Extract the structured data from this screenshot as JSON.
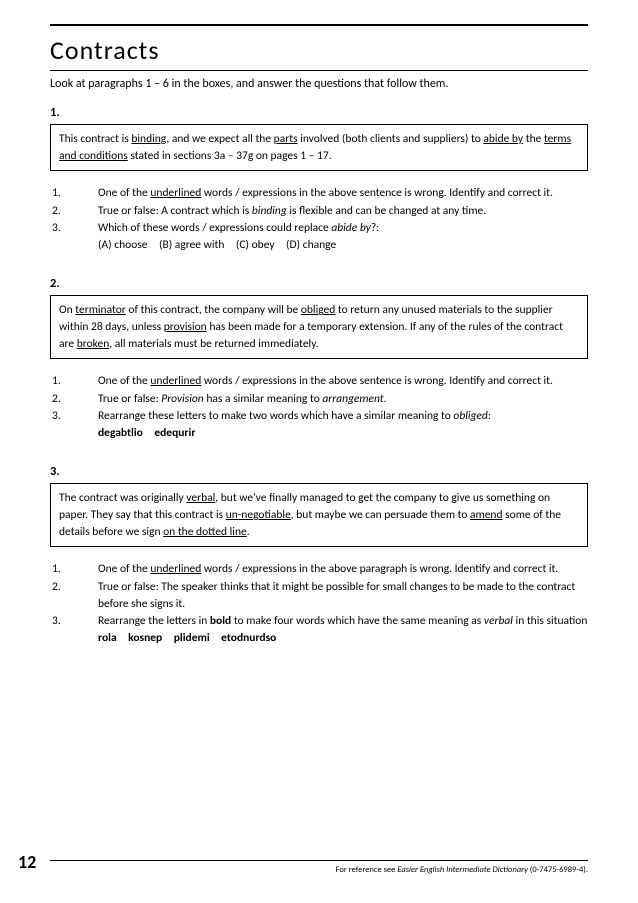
{
  "title": "Contracts",
  "intro": "Look at paragraphs 1 – 6 in the boxes, and answer the questions that follow them.",
  "sections": [
    {
      "num": "1.",
      "box_html": "This contract is <span class='u'>binding</span>, and we expect all the <span class='u'>parts</span> involved (both clients and suppliers) to <span class='u'>abide by</span> the <span class='u'>terms and conditions</span> stated in sections 3a – 37g on pages 1 – 17.",
      "questions": [
        {
          "n": "1.",
          "t": "One of the <span class='u'>underlined</span> words / expressions in the above sentence is wrong. Identify and correct it."
        },
        {
          "n": "2.",
          "t": "True or false: A contract which is <span class='i'>binding</span> is flexible and can be changed at any time."
        },
        {
          "n": "3.",
          "t": "Which of these words / expressions could replace <span class='i'>abide by</span>?:"
        }
      ],
      "sub": "(A) choose (B) agree with (C) obey (D) change"
    },
    {
      "num": "2.",
      "box_html": "On <span class='u'>terminator</span> of this contract, the company will be <span class='u'>obliged</span> to return any unused materials to the supplier within 28 days, unless <span class='u'>provision</span> has been made for a temporary extension. If any of the rules of the contract are <span class='u'>broken</span>, all materials must be returned immediately.",
      "questions": [
        {
          "n": "1.",
          "t": "One of the <span class='u'>underlined</span> words / expressions in the above sentence is wrong. Identify and correct it."
        },
        {
          "n": "2.",
          "t": "True or false: <span class='i'>Provision</span> has a similar meaning to <span class='i'>arrangement</span>."
        },
        {
          "n": "3.",
          "t": "Rearrange these letters to make two words which have a similar meaning to <span class='i'>obliged</span>:"
        }
      ],
      "sub": "<span class='b'>degabtlio edequrir</span>"
    },
    {
      "num": "3.",
      "box_html": "The contract was originally <span class='u'>verbal</span>, but we've finally managed to get the company to give us something on paper. They say that this contract is <span class='u'>un-negotiable</span>, but maybe we can persuade them to <span class='u'>amend</span> some of the details before we sign <span class='u'>on the dotted line</span>.",
      "questions": [
        {
          "n": "1.",
          "t": "One of the <span class='u'>underlined</span> words / expressions in the above paragraph is wrong. Identify and correct it."
        },
        {
          "n": "2.",
          "t": "True or false: The speaker thinks that it might be possible for small changes to be made to the contract before she signs it."
        },
        {
          "n": "3.",
          "t": "Rearrange the letters in <span class='b'>bold</span> to make four words which have the same meaning as <span class='i'>verbal</span> in this situation"
        }
      ],
      "sub": "<span class='b'>rola kosnep plidemi etodnurdso</span>"
    }
  ],
  "page_number": "12",
  "footer_html": "For reference see <span class='i'>Easier English Intermediate Dictionary</span> (0-7475-6989-4).",
  "colors": {
    "text": "#000000",
    "bg": "#ffffff"
  }
}
